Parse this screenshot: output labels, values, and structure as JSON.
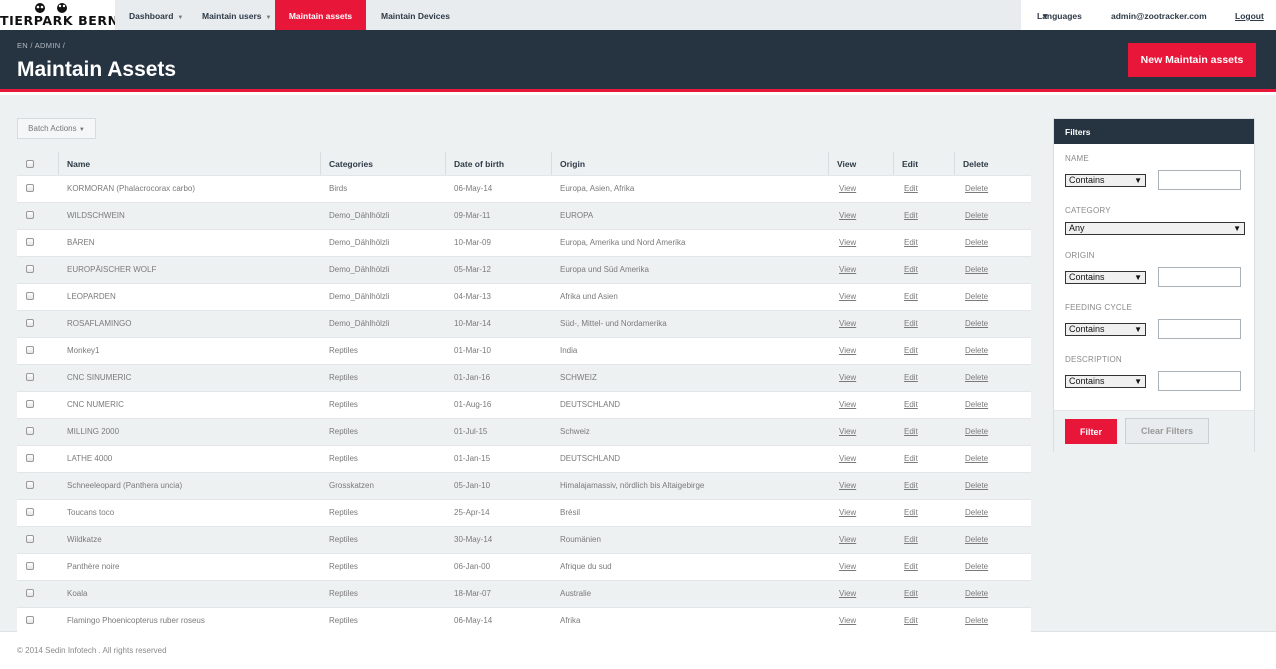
{
  "logo": {
    "text": "TIERPARK BERN"
  },
  "nav": {
    "items": [
      {
        "label": "Dashboard",
        "dropdown": true
      },
      {
        "label": "Maintain users",
        "dropdown": true
      },
      {
        "label": "Maintain assets",
        "dropdown": false,
        "active": true
      },
      {
        "label": "Maintain Devices",
        "dropdown": false
      }
    ],
    "languages": "Languages",
    "user": "admin@zootracker.com",
    "logout": "Logout"
  },
  "header": {
    "breadcrumb": "EN / ADMIN /",
    "title": "Maintain Assets",
    "new_button": "New Maintain assets"
  },
  "batch_actions": "Batch Actions",
  "table": {
    "columns": [
      "Name",
      "Categories",
      "Date of birth",
      "Origin",
      "View",
      "Edit",
      "Delete"
    ],
    "rows": [
      {
        "name": "KORMORAN (Phalacrocorax carbo)",
        "category": "Birds",
        "dob": "06-May-14",
        "origin": "Europa, Asien, Afrika",
        "view": "View",
        "edit": "Edit",
        "delete": "Delete"
      },
      {
        "name": "WILDSCHWEIN",
        "category": "Demo_Dählhölzli",
        "dob": "09-Mar-11",
        "origin": "EUROPA",
        "view": "View",
        "edit": "Edit",
        "delete": "Delete"
      },
      {
        "name": "BÄREN",
        "category": "Demo_Dählhölzli",
        "dob": "10-Mar-09",
        "origin": "Europa, Amerika und Nord Amerika",
        "view": "View",
        "edit": "Edit",
        "delete": "Delete"
      },
      {
        "name": "EUROPÄISCHER WOLF",
        "category": "Demo_Dählhölzli",
        "dob": "05-Mar-12",
        "origin": "Europa und Süd Amerika",
        "view": "View",
        "edit": "Edit",
        "delete": "Delete"
      },
      {
        "name": "LEOPARDEN",
        "category": "Demo_Dählhölzli",
        "dob": "04-Mar-13",
        "origin": "Afrika und Asien",
        "view": "View",
        "edit": "Edit",
        "delete": "Delete"
      },
      {
        "name": "ROSAFLAMINGO",
        "category": "Demo_Dählhölzli",
        "dob": "10-Mar-14",
        "origin": "Süd-, Mittel- und Nordamerika",
        "view": "View",
        "edit": "Edit",
        "delete": "Delete"
      },
      {
        "name": "Monkey1",
        "category": "Reptiles",
        "dob": "01-Mar-10",
        "origin": "India",
        "view": "View",
        "edit": "Edit",
        "delete": "Delete"
      },
      {
        "name": "CNC SINUMERIC",
        "category": "Reptiles",
        "dob": "01-Jan-16",
        "origin": "SCHWEIZ",
        "view": "View",
        "edit": "Edit",
        "delete": "Delete"
      },
      {
        "name": "CNC NUMERIC",
        "category": "Reptiles",
        "dob": "01-Aug-16",
        "origin": "DEUTSCHLAND",
        "view": "View",
        "edit": "Edit",
        "delete": "Delete"
      },
      {
        "name": "MILLING 2000",
        "category": "Reptiles",
        "dob": "01-Jul-15",
        "origin": "Schweiz",
        "view": "View",
        "edit": "Edit",
        "delete": "Delete"
      },
      {
        "name": "LATHE 4000",
        "category": "Reptiles",
        "dob": "01-Jan-15",
        "origin": "DEUTSCHLAND",
        "view": "View",
        "edit": "Edit",
        "delete": "Delete"
      },
      {
        "name": "Schneeleopard (Panthera uncia)",
        "category": "Grosskatzen",
        "dob": "05-Jan-10",
        "origin": "Himalajamassiv, nördlich bis Altaigebirge",
        "view": "View",
        "edit": "Edit",
        "delete": "Delete"
      },
      {
        "name": "Toucans toco",
        "category": "Reptiles",
        "dob": "25-Apr-14",
        "origin": "Brésil",
        "view": "View",
        "edit": "Edit",
        "delete": "Delete"
      },
      {
        "name": "Wildkatze",
        "category": "Reptiles",
        "dob": "30-May-14",
        "origin": "Roumänien",
        "view": "View",
        "edit": "Edit",
        "delete": "Delete"
      },
      {
        "name": "Panthère noire",
        "category": "Reptiles",
        "dob": "06-Jan-00",
        "origin": "Afrique du sud",
        "view": "View",
        "edit": "Edit",
        "delete": "Delete"
      },
      {
        "name": "Koala",
        "category": "Reptiles",
        "dob": "18-Mar-07",
        "origin": "Australie",
        "view": "View",
        "edit": "Edit",
        "delete": "Delete"
      },
      {
        "name": "Flamingo Phoenicopterus ruber roseus",
        "category": "Reptiles",
        "dob": "06-May-14",
        "origin": "Afrika",
        "view": "View",
        "edit": "Edit",
        "delete": "Delete"
      }
    ]
  },
  "filters": {
    "title": "Filters",
    "name_label": "NAME",
    "name_op": "Contains",
    "category_label": "CATEGORY",
    "category_value": "Any",
    "origin_label": "ORIGIN",
    "origin_op": "Contains",
    "feeding_label": "FEEDING CYCLE",
    "feeding_op": "Contains",
    "description_label": "DESCRIPTION",
    "description_op": "Contains",
    "filter_button": "Filter",
    "clear_button": "Clear Filters"
  },
  "footer": "© 2014 Sedin Infotech . All rights reserved",
  "colors": {
    "accent": "#e8173a",
    "header_bg": "#263340",
    "nav_bg": "#e8ecee"
  }
}
